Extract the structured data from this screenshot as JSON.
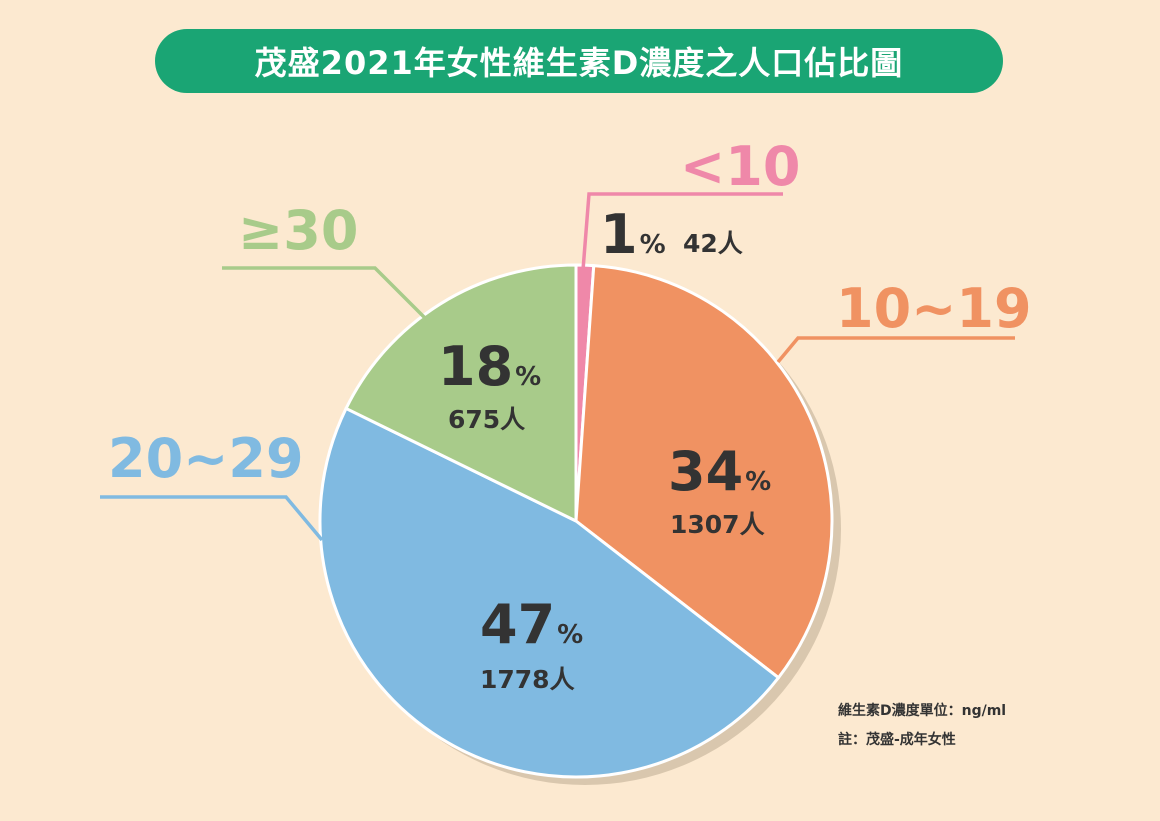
{
  "title": "茂盛2021年女性維生素D濃度之人口佔比圖",
  "chart_data": {
    "type": "pie",
    "title": "茂盛2021年女性維生素D濃度之人口佔比圖",
    "start": "top",
    "direction": "clockwise",
    "slices": [
      {
        "label": "<10",
        "percent": 1,
        "percent_text": "1",
        "count": 42,
        "count_text": "42人",
        "color": "#ef88a9"
      },
      {
        "label": "10~19",
        "percent": 34,
        "percent_text": "34",
        "count": 1307,
        "count_text": "1307人",
        "color": "#f09262"
      },
      {
        "label": "20~29",
        "percent": 47,
        "percent_text": "47",
        "count": 1778,
        "count_text": "1778人",
        "color": "#80bae1"
      },
      {
        "label": "≥30",
        "percent": 18,
        "percent_text": "18",
        "count": 675,
        "count_text": "675人",
        "color": "#a8cb8a"
      }
    ],
    "percent_sign": "%"
  },
  "notes": {
    "unit": "維生素D濃度單位：ng/ml",
    "remark": "註：茂盛-成年女性"
  }
}
